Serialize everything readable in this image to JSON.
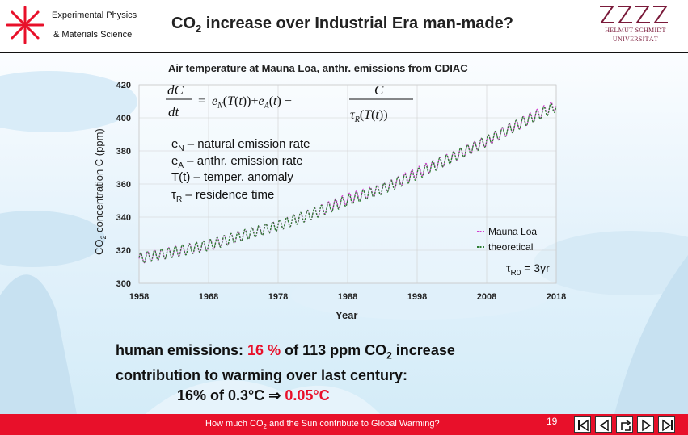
{
  "header": {
    "dept_line1": "Experimental Physics",
    "dept_line2": "& Materials Science",
    "title_main": "CO",
    "title_sub": "2",
    "title_rest": " increase over Industrial Era man-made?",
    "university_line1": "HELMUT SCHMIDT",
    "university_line2": "UNIVERSITÄT"
  },
  "chart_data": {
    "type": "line",
    "title": "Air temperature at Mauna Loa, anthr. emissions from CDIAC",
    "xlabel": "Year",
    "ylabel": "CO2 concentration C (ppm)",
    "xlim": [
      1958,
      2018
    ],
    "ylim": [
      300,
      420
    ],
    "xticks": [
      "1958",
      "1968",
      "1978",
      "1988",
      "1998",
      "2008",
      "2018"
    ],
    "yticks": [
      "300",
      "320",
      "340",
      "360",
      "380",
      "400",
      "420"
    ],
    "grid": true,
    "legend_position": "bottom-right",
    "series": [
      {
        "name": "Mauna Loa",
        "color": "#d23fd0",
        "x": [
          1958,
          1963,
          1968,
          1973,
          1978,
          1983,
          1988,
          1993,
          1998,
          2003,
          2008,
          2013,
          2018
        ],
        "y": [
          315,
          319,
          323,
          329,
          335,
          342,
          351,
          357,
          367,
          376,
          386,
          397,
          408
        ]
      },
      {
        "name": "theoretical",
        "color": "#2e7d32",
        "x": [
          1958,
          1963,
          1968,
          1973,
          1978,
          1983,
          1988,
          1993,
          1998,
          2003,
          2008,
          2013,
          2018
        ],
        "y": [
          315,
          319,
          323,
          329,
          335,
          342,
          350,
          357,
          366,
          376,
          386,
          397,
          407
        ]
      }
    ],
    "annotations": {
      "legend_items": [
        "Mauna Loa",
        "theoretical"
      ],
      "tau_label": "τ",
      "tau_sub": "R0",
      "tau_rest": " = 3yr",
      "def_eN": "e",
      "def_eN_sub": "N",
      "def_eN_rest": " – natural emission rate",
      "def_eA": "e",
      "def_eA_sub": "A",
      "def_eA_rest": "  – anthr. emission rate",
      "def_T": "T(t) – temper. anomaly",
      "def_tau": "τ",
      "def_tau_sub": "R",
      "def_tau_rest": " – residence time"
    }
  },
  "body": {
    "line1_a": "human emissions: ",
    "line1_pct": "16 %",
    "line1_b": " of 113 ppm CO",
    "line1_sub": "2",
    "line1_c": " increase",
    "line2": "contribution to warming over last century:",
    "line3_a": "16% of  0.3°C ",
    "line3_arrow": "⇒",
    "line3_result": " 0.05°C"
  },
  "footer": {
    "text_a": "How much CO",
    "text_sub": "2",
    "text_b": " and the Sun contribute to Global Warming?",
    "page_number": "19"
  },
  "colors": {
    "accent": "#e8102a",
    "sky": "#e9f4fb"
  }
}
